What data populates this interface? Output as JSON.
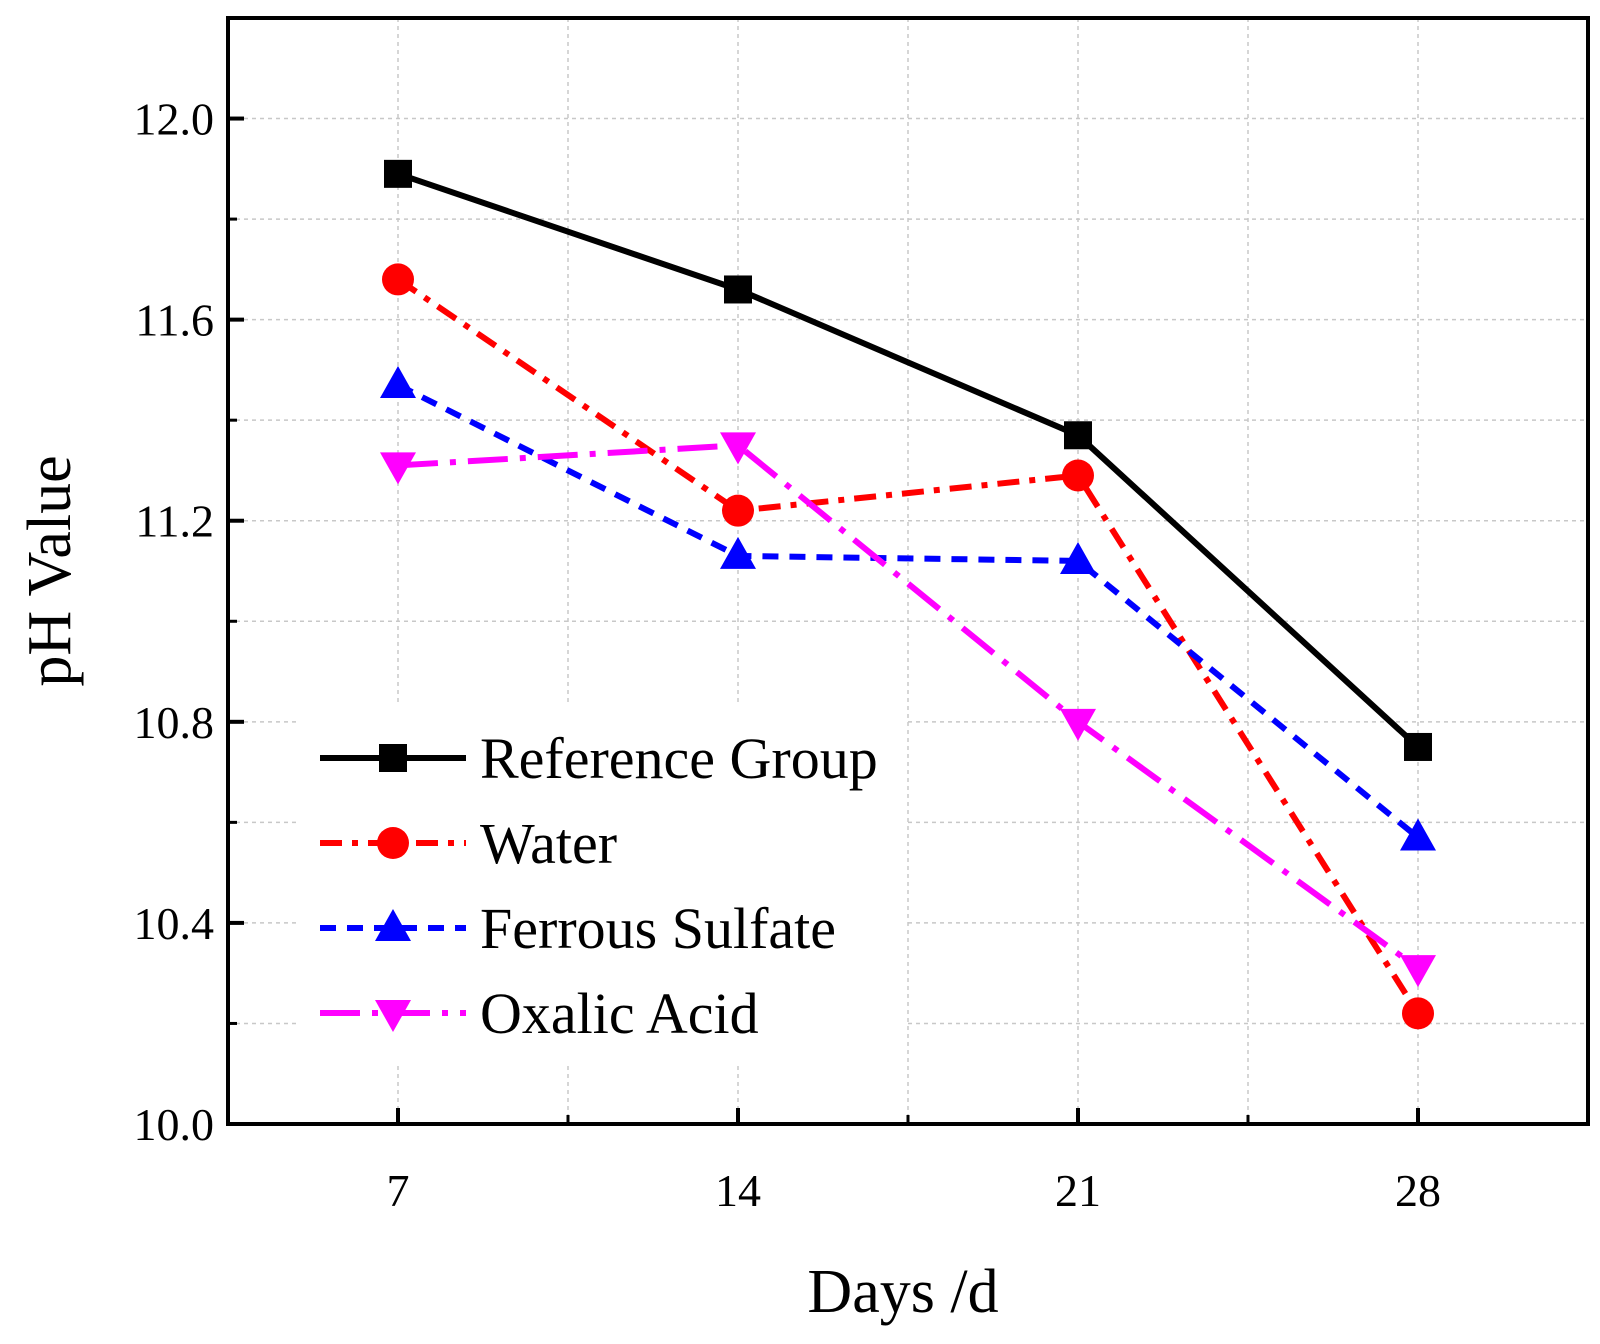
{
  "chart_data": {
    "type": "line",
    "title": "",
    "xlabel": "Days /d",
    "ylabel": "pH Value",
    "x": [
      7,
      14,
      21,
      28
    ],
    "x_tick_labels": [
      "7",
      "14",
      "21",
      "28"
    ],
    "xlim": [
      3.5,
      31.5
    ],
    "ylim": [
      10.0,
      12.2
    ],
    "y_ticks": [
      10.0,
      10.4,
      10.8,
      11.2,
      11.6,
      12.0
    ],
    "y_tick_labels": [
      "10.0",
      "10.4",
      "10.8",
      "11.2",
      "11.6",
      "12.0"
    ],
    "grid": true,
    "legend_position": "bottom-left",
    "series": [
      {
        "name": "Reference Group",
        "values": [
          11.89,
          11.66,
          11.37,
          10.75
        ],
        "color": "#000000",
        "marker": "square",
        "line_style": "solid"
      },
      {
        "name": "Water",
        "values": [
          11.68,
          11.22,
          11.29,
          10.22
        ],
        "color": "#ff0000",
        "marker": "circle",
        "line_style": "dash-dot"
      },
      {
        "name": "Ferrous Sulfate",
        "values": [
          11.47,
          11.13,
          11.12,
          10.57
        ],
        "color": "#0000ff",
        "marker": "triangle-up",
        "line_style": "dashed"
      },
      {
        "name": "Oxalic Acid",
        "values": [
          11.31,
          11.35,
          10.8,
          10.31
        ],
        "color": "#ff00ff",
        "marker": "triangle-down",
        "line_style": "long-dash-dot"
      }
    ]
  }
}
